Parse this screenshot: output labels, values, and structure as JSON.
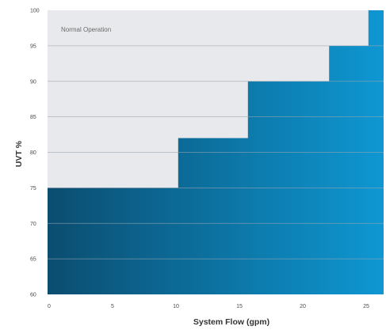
{
  "chart_data": {
    "type": "area",
    "title": "",
    "xlabel": "System Flow (gpm)",
    "ylabel": "UVT %",
    "xlim": [
      0,
      26.5
    ],
    "ylim": [
      60,
      100
    ],
    "x_ticks": [
      "0",
      "5",
      "10",
      "15",
      "20",
      "25"
    ],
    "y_ticks": [
      "60",
      "65",
      "70",
      "75",
      "80",
      "85",
      "90",
      "95",
      "100"
    ],
    "region_label": "Normal Operation",
    "step_boundary": [
      {
        "x_start": 0,
        "x_end": 10.3,
        "uvt_min": 75
      },
      {
        "x_start": 10.3,
        "x_end": 15.8,
        "uvt_min": 82
      },
      {
        "x_start": 15.8,
        "x_end": 22.2,
        "uvt_min": 90
      },
      {
        "x_start": 22.2,
        "x_end": 25.3,
        "uvt_min": 95
      },
      {
        "x_start": 25.3,
        "x_end": 26.5,
        "uvt_min": 100
      }
    ],
    "colors": {
      "normal_region": "#e8e9ec",
      "gradient_start": "#0b4d70",
      "gradient_end": "#0e97d2",
      "gridline": "#9aa6b0"
    }
  }
}
